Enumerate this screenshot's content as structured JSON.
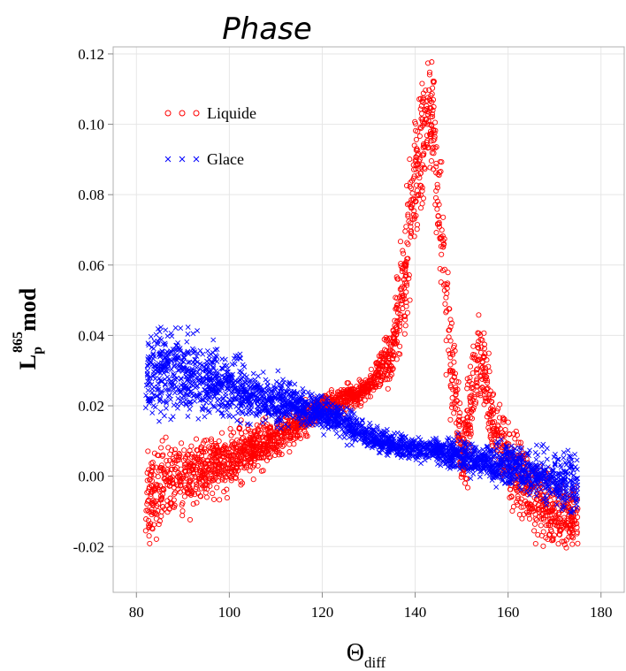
{
  "chart_data": {
    "type": "scatter",
    "title": "Phase",
    "xlabel": {
      "main": "Θ",
      "sub": "diff"
    },
    "ylabel": {
      "main": "L",
      "sub": "p",
      "sup": "865",
      "suffix": "mod"
    },
    "xlim": [
      75,
      185
    ],
    "ylim": [
      -0.033,
      0.122
    ],
    "xticks": [
      "80",
      "100",
      "120",
      "140",
      "160",
      "180"
    ],
    "xtick_values": [
      80,
      100,
      120,
      140,
      160,
      180
    ],
    "yticks": [
      "-0.02",
      "0.00",
      "0.02",
      "0.04",
      "0.06",
      "0.08",
      "0.10",
      "0.12"
    ],
    "ytick_values": [
      -0.02,
      0.0,
      0.02,
      0.04,
      0.06,
      0.08,
      0.1,
      0.12
    ],
    "grid": true,
    "legend_position": "top-left",
    "series": [
      {
        "name": "Liquide",
        "marker": "circle",
        "color": "#ff0000",
        "profile_x": [
          82,
          85,
          90,
          95,
          100,
          105,
          110,
          115,
          120,
          125,
          130,
          135,
          138,
          140,
          142,
          143,
          144,
          146,
          148,
          150,
          152,
          154,
          156,
          158,
          160,
          165,
          170,
          175
        ],
        "profile_y": [
          -0.008,
          -0.003,
          0.0,
          0.002,
          0.005,
          0.008,
          0.011,
          0.015,
          0.02,
          0.022,
          0.025,
          0.035,
          0.058,
          0.085,
          0.1,
          0.105,
          0.098,
          0.065,
          0.03,
          0.005,
          0.02,
          0.035,
          0.02,
          0.01,
          0.005,
          -0.005,
          -0.01,
          -0.012
        ],
        "spread_y": [
          0.012,
          0.011,
          0.009,
          0.008,
          0.007,
          0.006,
          0.005,
          0.004,
          0.003,
          0.003,
          0.003,
          0.007,
          0.015,
          0.02,
          0.015,
          0.012,
          0.015,
          0.02,
          0.015,
          0.01,
          0.015,
          0.012,
          0.012,
          0.01,
          0.01,
          0.009,
          0.009,
          0.008
        ]
      },
      {
        "name": "Glace",
        "marker": "x",
        "color": "#0000ff",
        "profile_x": [
          82,
          85,
          90,
          95,
          100,
          105,
          110,
          115,
          120,
          125,
          130,
          135,
          140,
          145,
          150,
          155,
          160,
          165,
          170,
          175
        ],
        "profile_y": [
          0.028,
          0.03,
          0.029,
          0.027,
          0.025,
          0.023,
          0.021,
          0.02,
          0.018,
          0.015,
          0.011,
          0.009,
          0.008,
          0.007,
          0.006,
          0.004,
          0.003,
          0.001,
          -0.001,
          -0.002
        ],
        "spread_y": [
          0.012,
          0.012,
          0.011,
          0.009,
          0.008,
          0.007,
          0.006,
          0.005,
          0.004,
          0.004,
          0.003,
          0.003,
          0.003,
          0.003,
          0.004,
          0.004,
          0.005,
          0.006,
          0.007,
          0.008
        ]
      }
    ]
  }
}
